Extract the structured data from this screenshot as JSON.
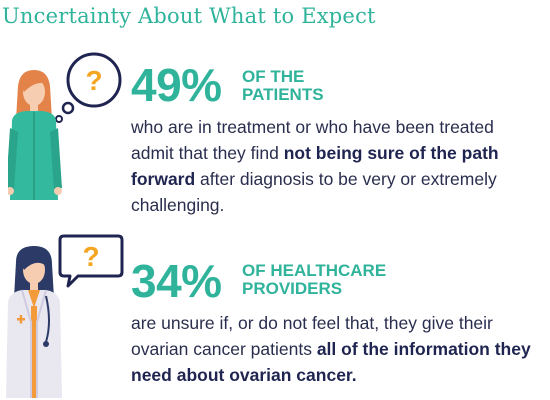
{
  "title": "Uncertainty About What to Expect",
  "patients": {
    "stat": "49%",
    "label_line1": "OF THE",
    "label_line2": "PATIENTS",
    "text_before": "who are in treatment or who have been treated admit that they find ",
    "text_bold": "not being sure of the path forward",
    "text_after": " after diagnosis to be very or extremely challenging.",
    "bubble_mark": "?"
  },
  "providers": {
    "stat": "34%",
    "label_line1": "OF HEALTHCARE",
    "label_line2": "PROVIDERS",
    "text_before": "are unsure if, or do not feel that, they give their ovarian cancer patients ",
    "text_bold": "all of the information they need about ovarian cancer.",
    "bubble_mark": "?"
  },
  "colors": {
    "teal": "#2fb39b",
    "navy": "#1f2550",
    "bubble_outline": "#1f2550",
    "question_mark": "#f4a623",
    "hair_patient": "#e3834a",
    "hair_provider": "#2b3a67",
    "coat": "#e9e7f0",
    "skin": "#f6cdb0"
  },
  "icons": {
    "patient": "patient-woman-icon",
    "provider": "doctor-woman-icon",
    "thought_bubble": "thought-bubble-icon",
    "speech_bubble": "speech-bubble-icon"
  }
}
